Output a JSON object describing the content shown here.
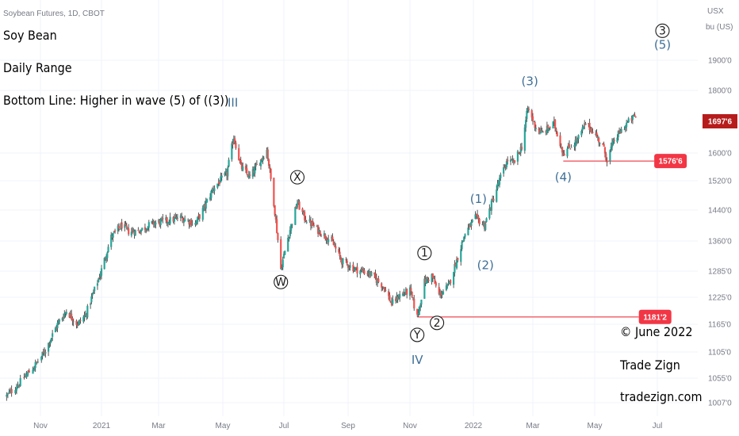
{
  "chart_data": {
    "type": "candlestick",
    "symbol": "Soybean Futures, 1D, CBOT",
    "currency_label": "USX",
    "unit_label": "bu (US)",
    "price_axis": {
      "ylim": [
        1000,
        2030
      ],
      "ticks": [
        {
          "value": 1007.0,
          "label": "1007'0"
        },
        {
          "value": 1055.0,
          "label": "1055'0"
        },
        {
          "value": 1105.0,
          "label": "1105'0"
        },
        {
          "value": 1165.0,
          "label": "1165'0"
        },
        {
          "value": 1225.0,
          "label": "1225'0"
        },
        {
          "value": 1285.0,
          "label": "1285'0"
        },
        {
          "value": 1360.0,
          "label": "1360'0"
        },
        {
          "value": 1440.0,
          "label": "1440'0"
        },
        {
          "value": 1520.0,
          "label": "1520'0"
        },
        {
          "value": 1600.0,
          "label": "1600'0"
        },
        {
          "value": 1800.0,
          "label": "1800'0"
        },
        {
          "value": 1900.0,
          "label": "1900'0"
        }
      ]
    },
    "time_axis": [
      {
        "label": "Nov",
        "date": "2020-11-01"
      },
      {
        "label": "2021",
        "date": "2021-01-01"
      },
      {
        "label": "Mar",
        "date": "2021-03-01"
      },
      {
        "label": "May",
        "date": "2021-05-01"
      },
      {
        "label": "Jul",
        "date": "2021-07-01"
      },
      {
        "label": "Sep",
        "date": "2021-09-01"
      },
      {
        "label": "Nov",
        "date": "2021-11-01"
      },
      {
        "label": "2022",
        "date": "2022-01-01"
      },
      {
        "label": "Mar",
        "date": "2022-03-01"
      },
      {
        "label": "May",
        "date": "2022-05-01"
      },
      {
        "label": "Jul",
        "date": "2022-07-01"
      }
    ],
    "last_price": {
      "label": "1697'6",
      "value": 1697.75
    },
    "price_path": [
      [
        "2020-10-05",
        1020
      ],
      [
        "2020-10-15",
        1045
      ],
      [
        "2020-10-26",
        1075
      ],
      [
        "2020-11-05",
        1105
      ],
      [
        "2020-11-18",
        1165
      ],
      [
        "2020-11-27",
        1195
      ],
      [
        "2020-12-08",
        1165
      ],
      [
        "2020-12-16",
        1185
      ],
      [
        "2020-12-31",
        1280
      ],
      [
        "2021-01-11",
        1370
      ],
      [
        "2021-01-22",
        1400
      ],
      [
        "2021-01-29",
        1385
      ],
      [
        "2021-02-08",
        1385
      ],
      [
        "2021-02-22",
        1405
      ],
      [
        "2021-03-05",
        1410
      ],
      [
        "2021-03-22",
        1420
      ],
      [
        "2021-04-05",
        1405
      ],
      [
        "2021-04-12",
        1440
      ],
      [
        "2021-04-22",
        1500
      ],
      [
        "2021-05-05",
        1540
      ],
      [
        "2021-05-12",
        1650
      ],
      [
        "2021-05-19",
        1560
      ],
      [
        "2021-05-28",
        1530
      ],
      [
        "2021-06-08",
        1580
      ],
      [
        "2021-06-14",
        1610
      ],
      [
        "2021-06-21",
        1460
      ],
      [
        "2021-06-28",
        1290
      ],
      [
        "2021-07-06",
        1380
      ],
      [
        "2021-07-14",
        1460
      ],
      [
        "2021-07-21",
        1420
      ],
      [
        "2021-08-02",
        1390
      ],
      [
        "2021-08-16",
        1360
      ],
      [
        "2021-08-26",
        1310
      ],
      [
        "2021-09-08",
        1290
      ],
      [
        "2021-09-22",
        1280
      ],
      [
        "2021-10-06",
        1250
      ],
      [
        "2021-10-14",
        1210
      ],
      [
        "2021-10-22",
        1230
      ],
      [
        "2021-11-01",
        1240
      ],
      [
        "2021-11-08",
        1181
      ],
      [
        "2021-11-15",
        1260
      ],
      [
        "2021-11-22",
        1275
      ],
      [
        "2021-11-29",
        1230
      ],
      [
        "2021-12-08",
        1250
      ],
      [
        "2021-12-17",
        1320
      ],
      [
        "2021-12-24",
        1380
      ],
      [
        "2022-01-03",
        1420
      ],
      [
        "2022-01-12",
        1400
      ],
      [
        "2022-01-20",
        1465
      ],
      [
        "2022-01-28",
        1530
      ],
      [
        "2022-02-04",
        1580
      ],
      [
        "2022-02-10",
        1570
      ],
      [
        "2022-02-18",
        1620
      ],
      [
        "2022-02-24",
        1740
      ],
      [
        "2022-03-03",
        1685
      ],
      [
        "2022-03-10",
        1660
      ],
      [
        "2022-03-22",
        1690
      ],
      [
        "2022-03-31",
        1600
      ],
      [
        "2022-04-07",
        1620
      ],
      [
        "2022-04-14",
        1640
      ],
      [
        "2022-04-22",
        1690
      ],
      [
        "2022-04-29",
        1670
      ],
      [
        "2022-05-09",
        1620
      ],
      [
        "2022-05-13",
        1580
      ],
      [
        "2022-05-20",
        1640
      ],
      [
        "2022-06-01",
        1690
      ],
      [
        "2022-06-09",
        1715
      ],
      [
        "2022-06-13",
        1698
      ]
    ],
    "horizontal_lines": [
      {
        "label": "1576'6",
        "value": 1576.75,
        "from": "2022-03-31",
        "to": "2022-06-28",
        "color": "#f05a63"
      },
      {
        "label": "1181'2",
        "value": 1181.25,
        "from": "2021-11-08",
        "to": "2022-06-13",
        "color": "#f05a63"
      }
    ],
    "wave_labels": [
      {
        "text": "III",
        "date": "2021-05-11",
        "price": 1760,
        "style": "blue"
      },
      {
        "text": "IV",
        "date": "2021-11-08",
        "price": 1090,
        "style": "blue"
      },
      {
        "text": "W",
        "date": "2021-06-28",
        "price": 1260,
        "style": "circled"
      },
      {
        "text": "X",
        "date": "2021-07-14",
        "price": 1530,
        "style": "circled"
      },
      {
        "text": "Y",
        "date": "2021-11-08",
        "price": 1142,
        "style": "circled"
      },
      {
        "text": "1",
        "date": "2021-11-15",
        "price": 1330,
        "style": "circled"
      },
      {
        "text": "2",
        "date": "2021-11-27",
        "price": 1168,
        "style": "circled"
      },
      {
        "text": "(1)",
        "date": "2022-01-06",
        "price": 1470,
        "style": "blue"
      },
      {
        "text": "(2)",
        "date": "2022-01-13",
        "price": 1300,
        "style": "blue"
      },
      {
        "text": "(3)",
        "date": "2022-02-26",
        "price": 1830,
        "style": "blue"
      },
      {
        "text": "(4)",
        "date": "2022-03-31",
        "price": 1530,
        "style": "blue"
      },
      {
        "text": "3",
        "date": "2022-07-06",
        "price": 2005,
        "style": "circled"
      },
      {
        "text": "(5)",
        "date": "2022-07-06",
        "price": 1955,
        "style": "blue"
      }
    ],
    "colors": {
      "up": "#26a69a",
      "down": "#ef5350",
      "wick": "#444444",
      "wave_blue": "#3f6f97",
      "last_price_bg": "#b71c1c",
      "line_label_bg": "#f23645"
    }
  },
  "overlay": {
    "title": "Soy Bean",
    "subtitle": "Daily Range",
    "bottom_line": "Bottom Line: Higher in wave (5) of ((3))",
    "copyright": "© June 2022",
    "brand": "Trade Zign",
    "website": "tradezign.com"
  }
}
